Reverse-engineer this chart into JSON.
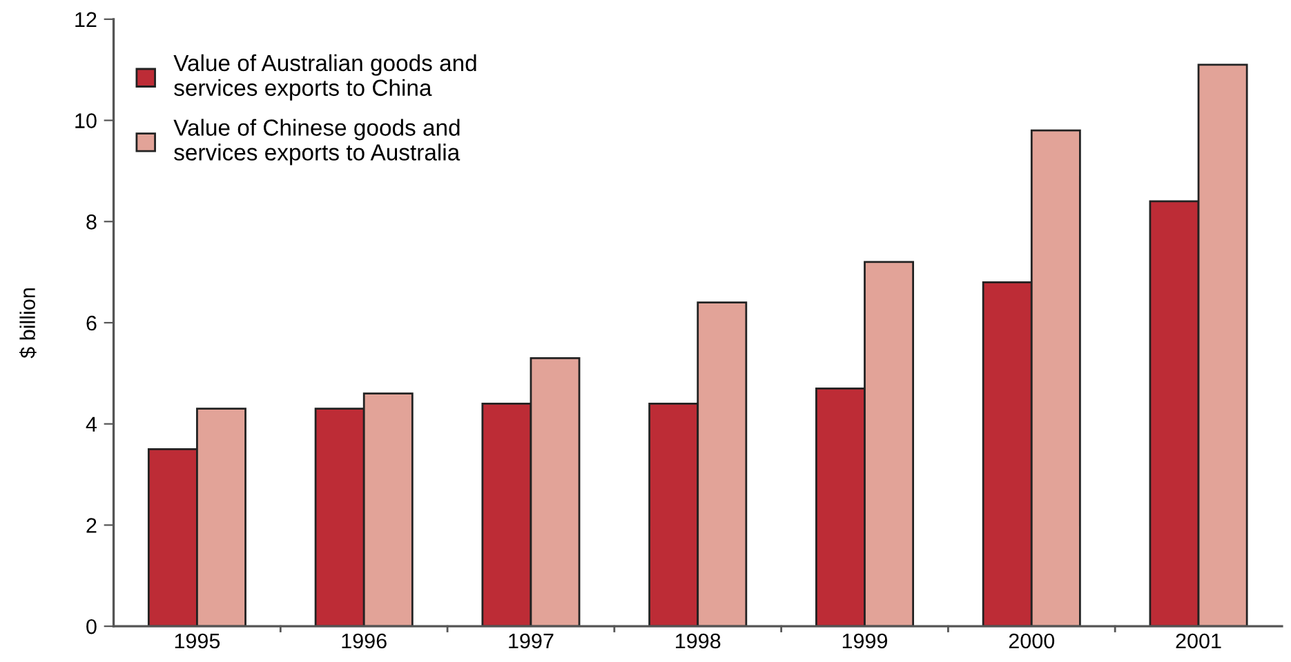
{
  "chart_data": {
    "type": "bar",
    "ylabel": "$ billion",
    "categories": [
      "1995",
      "1996",
      "1997",
      "1998",
      "1999",
      "2000",
      "2001"
    ],
    "series": [
      {
        "name": "Value of Australian goods and\nservices exports to China",
        "color": "#bd2c36",
        "values": [
          3.5,
          4.3,
          4.4,
          4.4,
          4.7,
          6.8,
          8.4
        ]
      },
      {
        "name": "Value of Chinese goods and\nservices exports to Australia",
        "color": "#e2a398",
        "values": [
          4.3,
          4.6,
          5.3,
          6.4,
          7.2,
          9.8,
          11.1
        ]
      }
    ],
    "ylim": [
      0,
      12
    ],
    "yticks": [
      0,
      2,
      4,
      6,
      8,
      10,
      12
    ],
    "grid": false,
    "legend": "top left"
  }
}
